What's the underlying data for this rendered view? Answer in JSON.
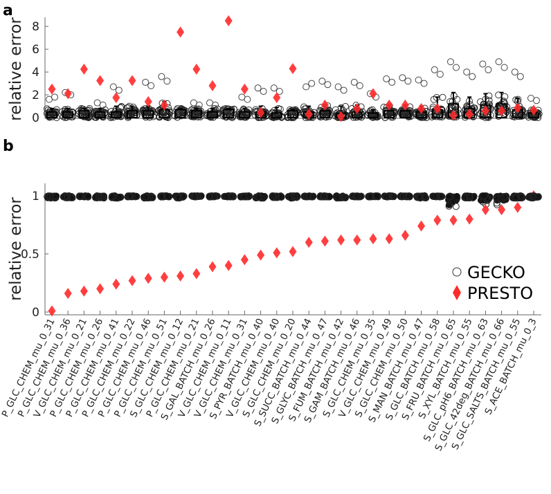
{
  "chart_data": [
    {
      "panel": "a",
      "type": "scatter",
      "ylabel": "relative error",
      "ylim": [
        0,
        8.8
      ],
      "yticks": [
        "0",
        "2",
        "4",
        "6",
        "8"
      ],
      "grid": false,
      "categories": [
        "P_GLC_CHEM_mu_0_31",
        "P_GLC_CHEM_mu_0_36",
        "V_GLC_CHEM_mu_0_21",
        "P_GLC_CHEM_mu_0_26",
        "P_GLC_CHEM_mu_0_41",
        "P_GLC_CHEM_mu_0_22",
        "P_GLC_CHEM_mu_0_46",
        "P_GLC_CHEM_mu_0_51",
        "S_GLC_CHEM_mu_0_12",
        "P_GLC_CHEM_mu_0_21",
        "S_GAL_BATCH_mu_0_26",
        "V_GLC_CHEM_mu_0_11",
        "V_GLC_CHEM_mu_0_31",
        "S_PYR_BATCH_mu_0_40",
        "V_GLC_CHEM_mu_0_40",
        "S_GLC_CHEM_mu_0_20",
        "S_SUCC_BATCH_mu_0_44",
        "S_GLYC_BATCH_mu_0_47",
        "S_FUM_BATCH_mu_0_42",
        "S_GAM_BATCH_mu_0_46",
        "S_GLC_CHEM_mu_0_35",
        "V_GLC_CHEM_mu_0_49",
        "S_GLC_CHEM_mu_0_50",
        "S_MAN_BATCH_mu_0_47",
        "S_GLC_BATCH_mu_0_58",
        "S_FRU_BATCH_mu_0_65",
        "S_XYL_BATCH_mu_0_55",
        "S_GLC_pH6_BATCH_mu_0_63",
        "S_GLC_42deg_BATCH_mu_0_66",
        "S_GLC_SALTS_BATCH_mu_0_55",
        "S_ACE_BATCH_mu_0_3"
      ],
      "series": [
        {
          "name": "GECKO",
          "marker": "open-circle",
          "color": "#333333",
          "box_q3": [
            0.5,
            0.5,
            0.6,
            0.5,
            0.5,
            0.6,
            0.6,
            0.7,
            0.7,
            0.6,
            0.5,
            0.7,
            0.5,
            0.5,
            0.4,
            0.6,
            0.5,
            0.6,
            0.4,
            0.5,
            0.4,
            0.6,
            0.6,
            0.5,
            0.7,
            1.2,
            0.8,
            1.1,
            1.2,
            0.7,
            0.4
          ],
          "whisker_hi": [
            0.8,
            0.8,
            0.8,
            0.8,
            1.0,
            1.0,
            1.0,
            1.4,
            0.8,
            0.8,
            0.8,
            0.8,
            0.8,
            1.0,
            0.9,
            0.7,
            1.0,
            1.1,
            1.0,
            1.1,
            0.7,
            1.1,
            1.1,
            1.0,
            1.8,
            2.2,
            1.8,
            2.1,
            2.2,
            1.7,
            0.7
          ],
          "outliers": [
            [
              1.6,
              1.8
            ],
            [
              2.2,
              2.0
            ],
            [
              0.8
            ],
            [
              1.3,
              1.1
            ],
            [
              2.7,
              2.4
            ],
            [
              1.0
            ],
            [
              3.1,
              2.8
            ],
            [
              3.6,
              3.2
            ],
            [
              0.8
            ],
            [
              1.3,
              1.1
            ],
            [
              1.3,
              1.1
            ],
            [
              0.8
            ],
            [
              1.8,
              1.6
            ],
            [
              2.6,
              2.3
            ],
            [
              2.6,
              2.3
            ],
            [
              0.7
            ],
            [
              2.7,
              3.0
            ],
            [
              3.2,
              2.9
            ],
            [
              2.7,
              2.4
            ],
            [
              3.1,
              2.8
            ],
            [
              2.1,
              1.8
            ],
            [
              3.4,
              3.1
            ],
            [
              3.5,
              3.2
            ],
            [
              3.3,
              3.0
            ],
            [
              4.2,
              3.8
            ],
            [
              4.9,
              4.4
            ],
            [
              4.0,
              3.6
            ],
            [
              4.7,
              4.2
            ],
            [
              4.9,
              4.4
            ],
            [
              4.0,
              3.6
            ],
            [
              1.7,
              1.5
            ]
          ]
        },
        {
          "name": "PRESTO",
          "marker": "filled-diamond",
          "color": "#ff2a2a",
          "values": [
            2.5,
            2.1,
            4.25,
            3.25,
            1.75,
            3.25,
            1.4,
            1.1,
            7.5,
            4.25,
            2.8,
            8.5,
            2.5,
            0.45,
            1.75,
            4.3,
            0.3,
            1.1,
            0.1,
            0.8,
            2.1,
            1.1,
            1.1,
            0.8,
            0.8,
            0.2,
            0.3,
            0.6,
            0.6,
            0.85,
            0.65
          ]
        }
      ]
    },
    {
      "panel": "b",
      "type": "scatter",
      "ylabel": "relative error",
      "ylim": [
        0,
        1
      ],
      "yticks": [
        "0",
        "0.5",
        "1"
      ],
      "grid": false,
      "legend": {
        "position": "bottom-right",
        "entries": [
          "GECKO",
          "PRESTO"
        ]
      },
      "series": [
        {
          "name": "GECKO",
          "marker": "open-circle",
          "color": "#333333",
          "min_values": [
            0.98,
            0.98,
            0.99,
            0.98,
            0.98,
            0.99,
            0.98,
            0.99,
            0.98,
            0.99,
            0.99,
            0.99,
            0.99,
            0.98,
            0.98,
            0.98,
            0.99,
            0.99,
            0.98,
            0.99,
            0.99,
            0.99,
            0.99,
            0.98,
            0.99,
            0.9,
            0.98,
            0.9,
            0.92,
            0.98,
            0.98
          ]
        },
        {
          "name": "PRESTO",
          "marker": "filled-diamond",
          "color": "#ff2a2a",
          "values": [
            0.01,
            0.16,
            0.18,
            0.2,
            0.24,
            0.27,
            0.29,
            0.3,
            0.31,
            0.33,
            0.39,
            0.4,
            0.45,
            0.49,
            0.51,
            0.52,
            0.6,
            0.61,
            0.62,
            0.62,
            0.63,
            0.63,
            0.66,
            0.74,
            0.79,
            0.79,
            0.8,
            0.88,
            0.88,
            0.9,
            1.0
          ]
        }
      ]
    }
  ]
}
